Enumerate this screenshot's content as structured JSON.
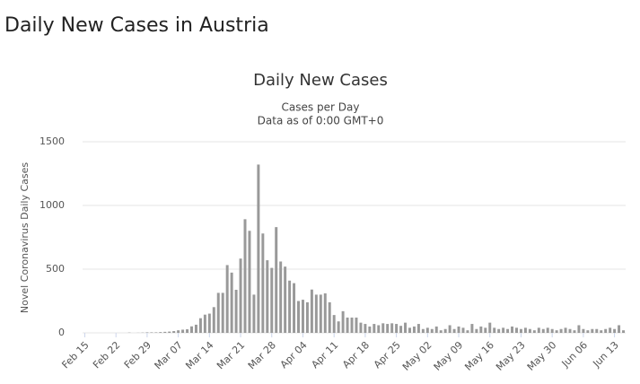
{
  "header": {
    "title": "Daily New Cases in Austria"
  },
  "chart_data": {
    "type": "bar",
    "title": "Daily New Cases",
    "subtitle": [
      "Cases per Day",
      "Data as of 0:00 GMT+0"
    ],
    "y_label": "Novel Coronavirus Daily Cases",
    "categories": [
      "Feb 15",
      null,
      null,
      null,
      null,
      null,
      null,
      "Feb 22",
      null,
      null,
      null,
      null,
      null,
      null,
      "Feb 29",
      null,
      null,
      null,
      null,
      null,
      null,
      "Mar 07",
      null,
      null,
      null,
      null,
      null,
      null,
      "Mar 14",
      null,
      null,
      null,
      null,
      null,
      null,
      "Mar 21",
      null,
      null,
      null,
      null,
      null,
      null,
      "Mar 28",
      null,
      null,
      null,
      null,
      null,
      null,
      "Apr 04",
      null,
      null,
      null,
      null,
      null,
      null,
      "Apr 11",
      null,
      null,
      null,
      null,
      null,
      null,
      "Apr 18",
      null,
      null,
      null,
      null,
      null,
      null,
      "Apr 25",
      null,
      null,
      null,
      null,
      null,
      null,
      "May 02",
      null,
      null,
      null,
      null,
      null,
      null,
      "May 09",
      null,
      null,
      null,
      null,
      null,
      null,
      "May 16",
      null,
      null,
      null,
      null,
      null,
      null,
      "May 23",
      null,
      null,
      null,
      null,
      null,
      null,
      "May 30",
      null,
      null,
      null,
      null,
      null,
      null,
      "Jun 06",
      null,
      null,
      null,
      null,
      null,
      null,
      "Jun 13",
      null,
      null
    ],
    "values": [
      0,
      0,
      0,
      0,
      0,
      0,
      0,
      0,
      0,
      0,
      2,
      0,
      1,
      2,
      4,
      4,
      4,
      6,
      8,
      10,
      14,
      20,
      25,
      28,
      51,
      64,
      115,
      143,
      151,
      202,
      314,
      314,
      532,
      473,
      338,
      583,
      892,
      801,
      300,
      1321,
      780,
      570,
      510,
      830,
      560,
      520,
      410,
      390,
      250,
      260,
      240,
      340,
      300,
      300,
      310,
      240,
      140,
      90,
      170,
      120,
      120,
      120,
      80,
      70,
      50,
      70,
      60,
      75,
      70,
      75,
      70,
      55,
      80,
      40,
      50,
      70,
      30,
      40,
      30,
      50,
      20,
      30,
      60,
      30,
      50,
      40,
      20,
      70,
      30,
      50,
      40,
      80,
      40,
      30,
      40,
      30,
      50,
      40,
      30,
      40,
      30,
      20,
      40,
      30,
      40,
      30,
      20,
      30,
      40,
      30,
      20,
      60,
      30,
      20,
      30,
      30,
      20,
      30,
      40,
      30,
      60,
      20
    ],
    "color": "#999999",
    "ylim": [
      0,
      1500
    ],
    "yticks": [
      0,
      500,
      1000,
      1500
    ],
    "grid": true
  }
}
